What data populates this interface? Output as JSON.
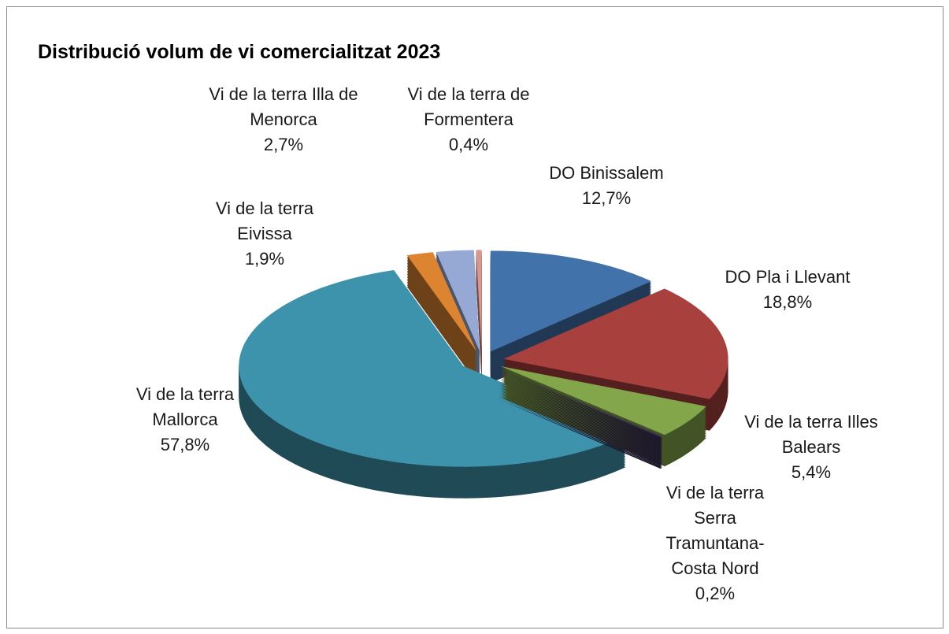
{
  "chart_data": {
    "type": "pie3d",
    "title": "Distribució volum de vi comercialitzat 2023",
    "categories": [
      "DO Binissalem",
      "DO Pla i Llevant",
      "Vi de la terra Illes Balears",
      "Vi de la terra Serra Tramuntana-Costa Nord",
      "Vi de la terra Mallorca",
      "Vi de la terra Eivissa",
      "Vi de la terra Illa de Menorca",
      "Vi de la terra de Formentera"
    ],
    "values": [
      12.7,
      18.8,
      5.4,
      0.2,
      57.8,
      1.9,
      2.7,
      0.4
    ],
    "value_labels": [
      "12,7%",
      "18,8%",
      "5,4%",
      "0,2%",
      "57,8%",
      "1,9%",
      "2,7%",
      "0,4%"
    ],
    "colors": [
      "#4172a9",
      "#a8403d",
      "#83a64a",
      "#3c2f56",
      "#3d93ac",
      "#dc8430",
      "#95a9d4",
      "#d99792"
    ]
  }
}
